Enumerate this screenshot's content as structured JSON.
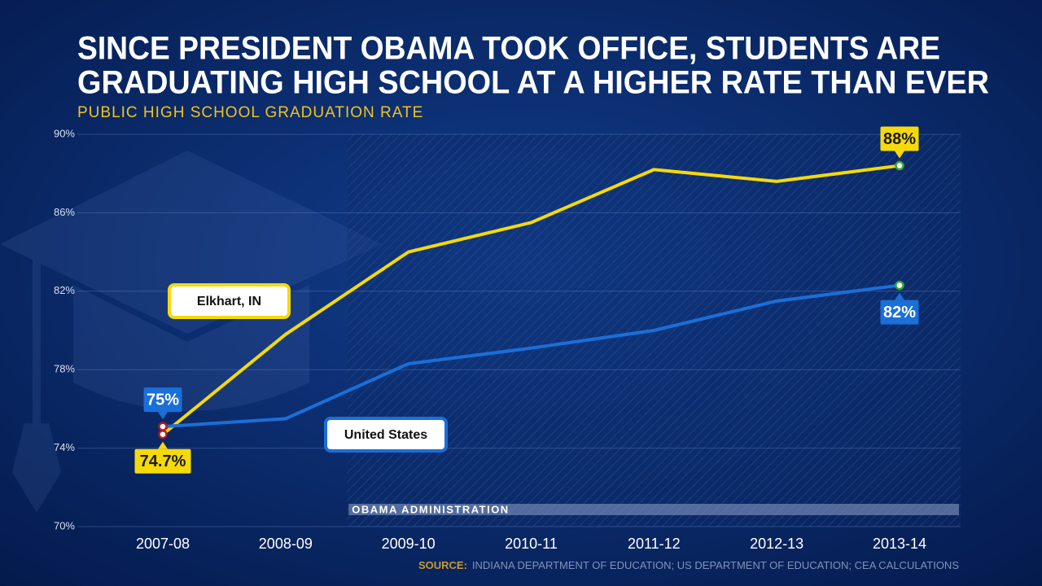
{
  "chart_data": {
    "type": "line",
    "title": [
      "SINCE PRESIDENT OBAMA TOOK OFFICE, STUDENTS ARE",
      "GRADUATING HIGH SCHOOL AT A HIGHER RATE THAN EVER"
    ],
    "subtitle": "PUBLIC HIGH SCHOOL GRADUATION RATE",
    "categories": [
      "2007-08",
      "2008-09",
      "2009-10",
      "2010-11",
      "2011-12",
      "2012-13",
      "2013-14"
    ],
    "series": [
      {
        "name": "Elkhart, IN",
        "color": "#f5d90a",
        "values": [
          74.7,
          79.8,
          84.0,
          85.5,
          88.2,
          87.6,
          88.4
        ],
        "value_labels": [
          "74.7%",
          null,
          null,
          null,
          null,
          null,
          "88%"
        ]
      },
      {
        "name": "United States",
        "color": "#1a6fd8",
        "values": [
          75.1,
          75.5,
          78.3,
          79.1,
          80.0,
          81.5,
          82.3
        ],
        "value_labels": [
          "75%",
          null,
          null,
          null,
          null,
          null,
          "82%"
        ]
      }
    ],
    "ylim": [
      70,
      90
    ],
    "yticks": [
      {
        "value": 70,
        "label": "70%"
      },
      {
        "value": 74,
        "label": "74%"
      },
      {
        "value": 78,
        "label": "78%"
      },
      {
        "value": 82,
        "label": "82%"
      },
      {
        "value": 86,
        "label": "86%"
      },
      {
        "value": 90,
        "label": "90%"
      }
    ],
    "grid": true,
    "shaded_region": {
      "label": "OBAMA ADMINISTRATION",
      "from": "2009-10"
    },
    "source_label": "SOURCE:",
    "source": "INDIANA DEPARTMENT OF EDUCATION; US DEPARTMENT OF EDUCATION; CEA CALCULATIONS"
  }
}
